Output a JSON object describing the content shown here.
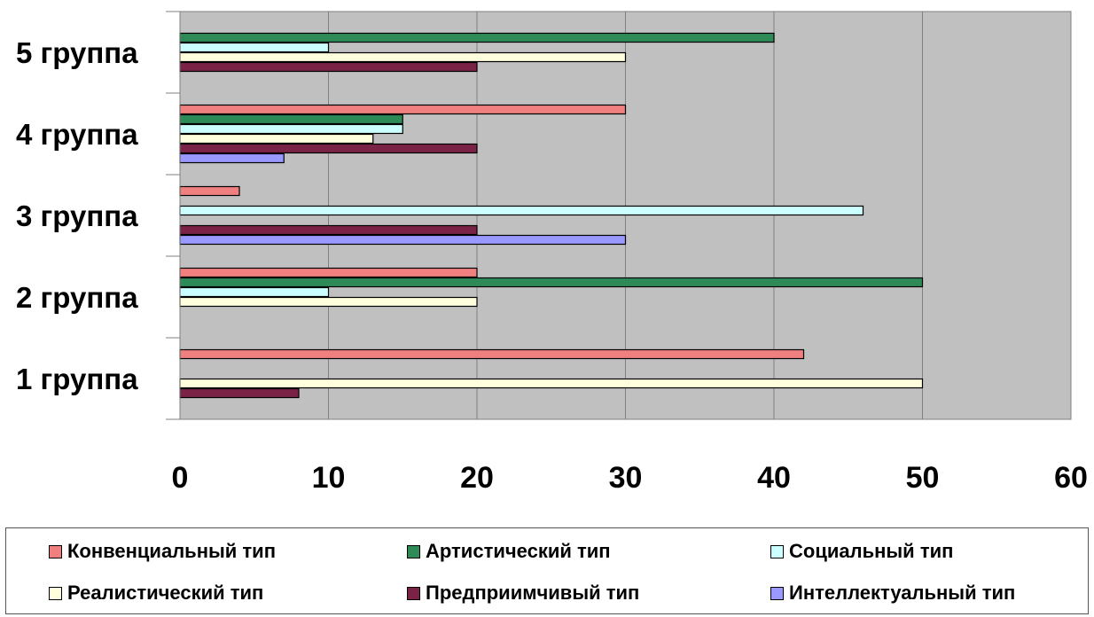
{
  "chart_data": {
    "type": "bar",
    "orientation": "horizontal",
    "title": "",
    "xlabel": "",
    "ylabel": "",
    "xlim": [
      0,
      60
    ],
    "x_ticks": [
      "0",
      "10",
      "20",
      "30",
      "40",
      "50",
      "60"
    ],
    "categories": [
      "1 группа",
      "2 группа",
      "3 группа",
      "4 группа",
      "5 группа"
    ],
    "series": [
      {
        "name": "Конвенциальный тип",
        "color": "#f08080",
        "values": [
          42,
          20,
          4,
          30,
          0
        ]
      },
      {
        "name": "Артистический тип",
        "color": "#2e8b57",
        "values": [
          0,
          50,
          0,
          15,
          40
        ]
      },
      {
        "name": "Социальный тип",
        "color": "#ccffff",
        "values": [
          0,
          10,
          46,
          15,
          10
        ]
      },
      {
        "name": "Реалистический тип",
        "color": "#ffffdd",
        "values": [
          50,
          20,
          0,
          13,
          30
        ]
      },
      {
        "name": "Предприимчивый тип",
        "color": "#7b2346",
        "values": [
          8,
          0,
          20,
          20,
          20
        ]
      },
      {
        "name": "Интеллектуальный тип",
        "color": "#9999ff",
        "values": [
          0,
          0,
          30,
          7,
          0
        ]
      }
    ],
    "plot_background": "#c0c0c0",
    "grid": true,
    "legend_position": "bottom"
  }
}
